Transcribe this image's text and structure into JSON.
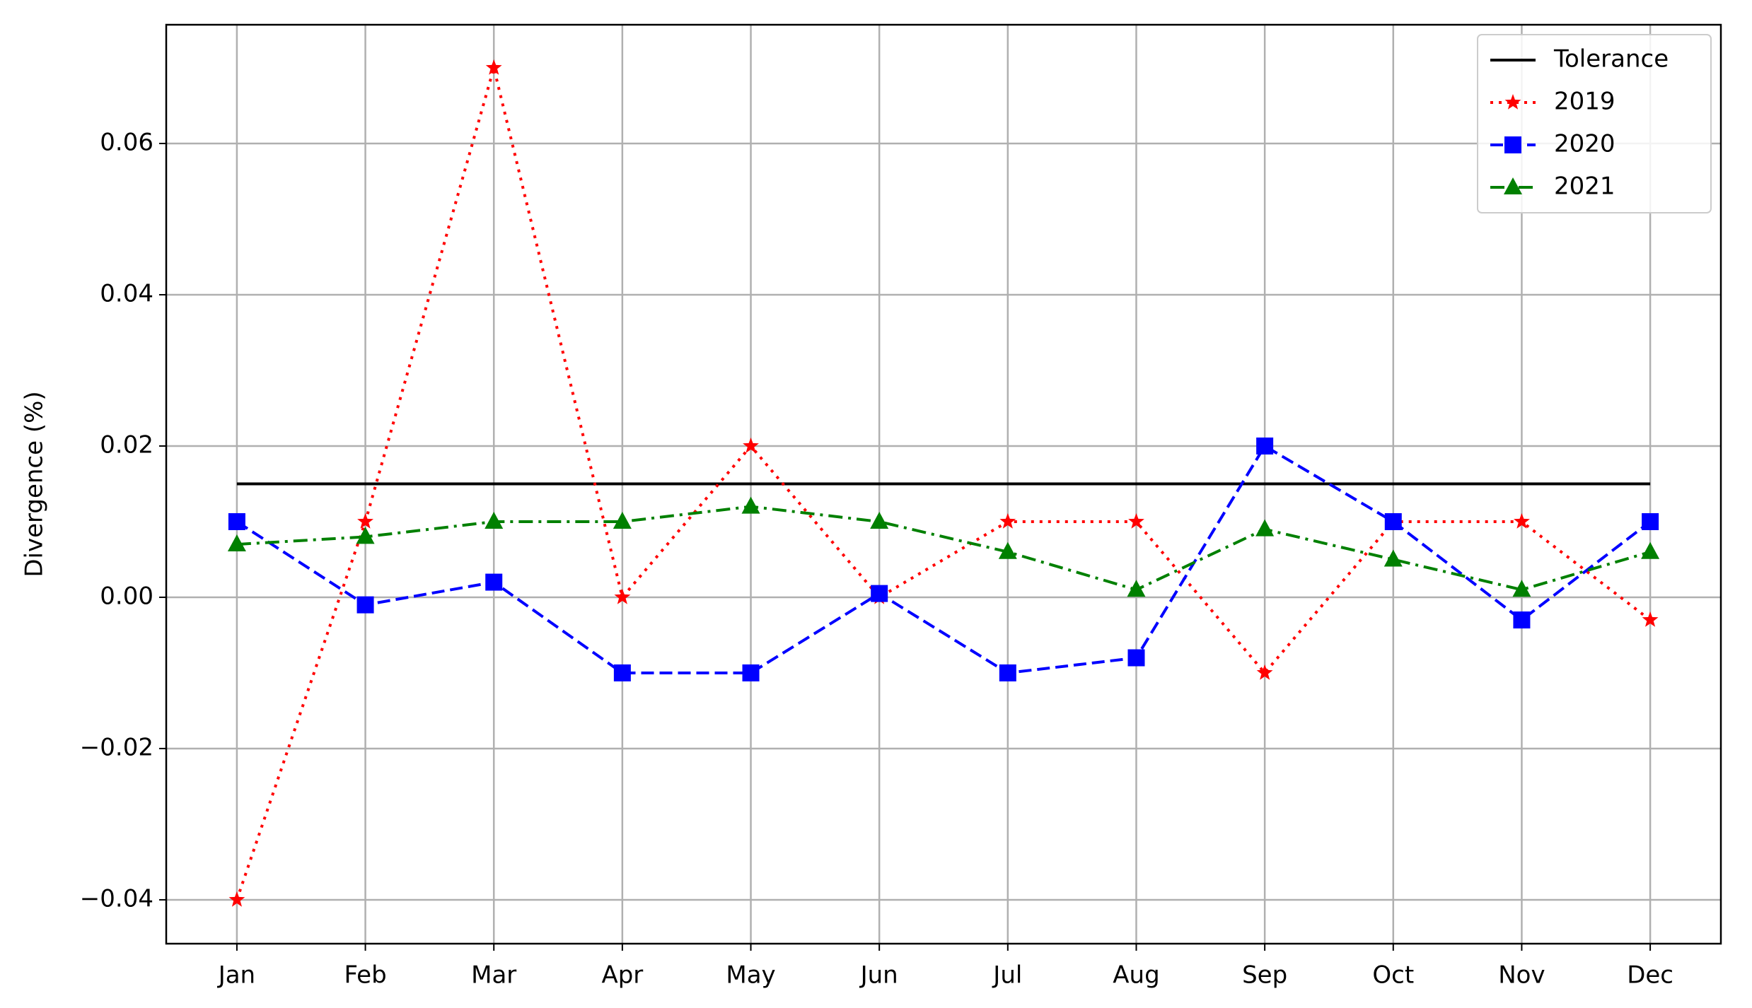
{
  "chart_data": {
    "type": "line",
    "y_label": "Divergence (%)",
    "categories": [
      "Jan",
      "Feb",
      "Mar",
      "Apr",
      "May",
      "Jun",
      "Jul",
      "Aug",
      "Sep",
      "Oct",
      "Nov",
      "Dec"
    ],
    "series": [
      {
        "name": "Tolerance",
        "color": "#000000",
        "linestyle": "solid",
        "marker": "none",
        "values": [
          0.015,
          0.015,
          0.015,
          0.015,
          0.015,
          0.015,
          0.015,
          0.015,
          0.015,
          0.015,
          0.015,
          0.015
        ]
      },
      {
        "name": "2019",
        "color": "#ff0000",
        "linestyle": "dotted",
        "marker": "star",
        "values": [
          -0.04,
          0.01,
          0.07,
          0.0,
          0.02,
          0.0,
          0.01,
          0.01,
          -0.01,
          0.01,
          0.01,
          -0.003
        ]
      },
      {
        "name": "2020",
        "color": "#0000ff",
        "linestyle": "dashed",
        "marker": "square",
        "values": [
          0.01,
          -0.001,
          0.002,
          -0.01,
          -0.01,
          0.0005,
          -0.01,
          -0.008,
          0.02,
          0.01,
          -0.003,
          0.01
        ]
      },
      {
        "name": "2021",
        "color": "#008000",
        "linestyle": "dashdot",
        "marker": "triangle",
        "values": [
          0.007,
          0.008,
          0.01,
          0.01,
          0.012,
          0.01,
          0.006,
          0.001,
          0.009,
          0.005,
          0.001,
          0.006
        ]
      }
    ],
    "ylim": [
      -0.0458,
      0.0757
    ],
    "yticks": [
      {
        "value": -0.04,
        "label": "−0.04"
      },
      {
        "value": -0.02,
        "label": "−0.02"
      },
      {
        "value": 0,
        "label": "0.00"
      },
      0.02,
      0.04,
      0.06
    ],
    "grid": true,
    "legend_position": "upper right"
  }
}
